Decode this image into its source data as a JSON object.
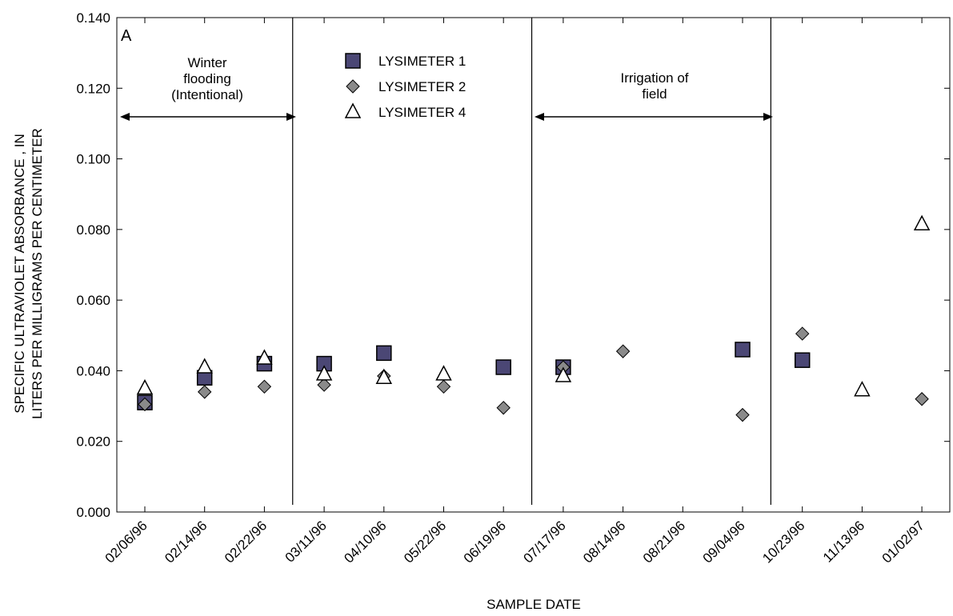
{
  "chart_data": {
    "type": "scatter",
    "panel_label": "A",
    "title": "",
    "xlabel": "SAMPLE DATE",
    "ylabel_lines": [
      "SPECIFIC ULTRAVIOLET ABSORBANCE , IN",
      "LITERS PER MILLIGRAMS PER CENTIMETER"
    ],
    "ylim": [
      0,
      0.14
    ],
    "y_ticks": [
      "0.000",
      "0.020",
      "0.040",
      "0.060",
      "0.080",
      "0.100",
      "0.120",
      "0.140"
    ],
    "categories": [
      "02/06/96",
      "02/14/96",
      "02/22/96",
      "03/11/96",
      "04/10/96",
      "05/22/96",
      "06/19/96",
      "07/17/96",
      "08/14/96",
      "08/21/96",
      "09/04/96",
      "10/23/96",
      "11/13/96",
      "01/02/97"
    ],
    "series": [
      {
        "name": "LYSIMETER 1",
        "marker": "square",
        "color": "#4b4775",
        "values": [
          0.031,
          0.038,
          0.042,
          0.042,
          0.045,
          null,
          0.041,
          0.041,
          null,
          null,
          0.046,
          0.043,
          null,
          null
        ]
      },
      {
        "name": "LYSIMETER 2",
        "marker": "diamond",
        "color": "#8a8a8a",
        "values": [
          0.0305,
          0.034,
          0.0355,
          0.036,
          0.0385,
          0.0355,
          0.0295,
          0.041,
          0.0455,
          null,
          0.0275,
          0.0505,
          null,
          0.032
        ]
      },
      {
        "name": "LYSIMETER 4",
        "marker": "triangle",
        "color": "#ffffff",
        "values": [
          0.035,
          0.041,
          0.0435,
          0.039,
          0.038,
          0.039,
          null,
          0.0385,
          null,
          null,
          null,
          null,
          0.0345,
          0.0815
        ]
      }
    ],
    "legend_position": "top-center",
    "annotations": [
      {
        "text_lines": [
          "Winter",
          "flooding",
          "(Intentional)"
        ]
      },
      {
        "text_lines": [
          "Irrigation of",
          "field"
        ]
      }
    ],
    "grid": false
  }
}
